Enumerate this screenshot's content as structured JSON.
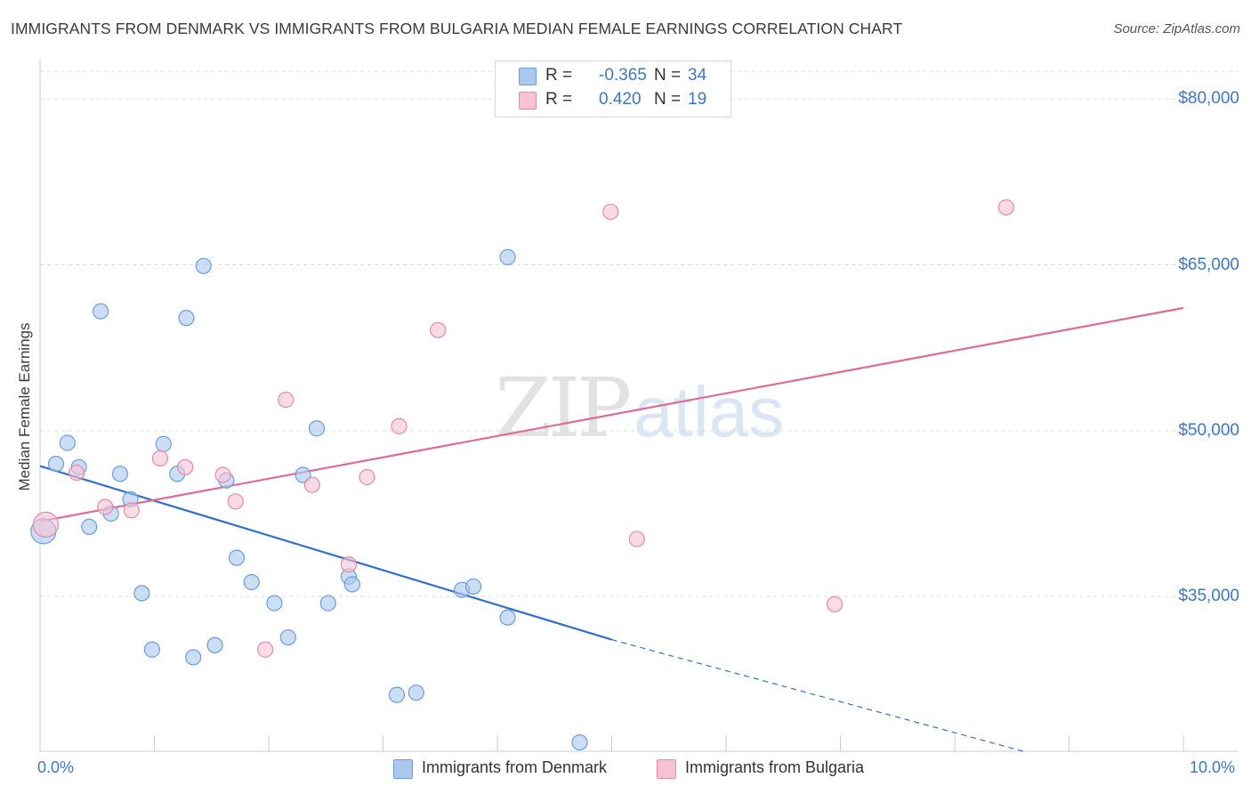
{
  "title": "IMMIGRANTS FROM DENMARK VS IMMIGRANTS FROM BULGARIA MEDIAN FEMALE EARNINGS CORRELATION CHART",
  "source": "Source: ZipAtlas.com",
  "watermark": {
    "zip": "ZIP",
    "atlas": "atlas"
  },
  "legend": {
    "rows": [
      {
        "r_label": "R =",
        "r_value": "-0.365",
        "n_label": "N =",
        "n_value": "34",
        "color": "#aac8ee",
        "border": "#6a9ede"
      },
      {
        "r_label": "R =",
        "r_value": "0.420",
        "n_label": "N =",
        "n_value": "19",
        "color": "#f7c3d3",
        "border": "#e58aa8"
      }
    ]
  },
  "chart_data": {
    "type": "scatter",
    "title": "IMMIGRANTS FROM DENMARK VS IMMIGRANTS FROM BULGARIA MEDIAN FEMALE EARNINGS CORRELATION CHART",
    "xlabel": "",
    "ylabel": "Median Female Earnings",
    "xlim": [
      0,
      10
    ],
    "ylim": [
      21000,
      83000
    ],
    "x_tick_labels": [
      "0.0%",
      "10.0%"
    ],
    "y_ticks": [
      35000,
      50000,
      65000,
      80000
    ],
    "y_tick_labels": [
      "$35,000",
      "$50,000",
      "$65,000",
      "$80,000"
    ],
    "grid": true,
    "legend_position": "top-center",
    "series": [
      {
        "name": "Immigrants from Denmark",
        "color": "#aac8ee",
        "stroke": "#6a9ede",
        "line_color": "#2e6fd0",
        "trend": {
          "x0": 0.0,
          "y0": 46800,
          "x1": 5.0,
          "y1": 31100,
          "dashed_to_x": 8.6,
          "dashed_to_y": 21000
        },
        "points": [
          {
            "x": 0.03,
            "y": 40900,
            "big": true
          },
          {
            "x": 0.14,
            "y": 47000
          },
          {
            "x": 0.24,
            "y": 48900
          },
          {
            "x": 0.34,
            "y": 46700
          },
          {
            "x": 0.43,
            "y": 41300
          },
          {
            "x": 0.53,
            "y": 60800
          },
          {
            "x": 0.62,
            "y": 42500
          },
          {
            "x": 0.7,
            "y": 46100
          },
          {
            "x": 0.79,
            "y": 43800
          },
          {
            "x": 0.89,
            "y": 35300
          },
          {
            "x": 0.98,
            "y": 30200
          },
          {
            "x": 1.08,
            "y": 48800
          },
          {
            "x": 1.2,
            "y": 46100
          },
          {
            "x": 1.28,
            "y": 60200
          },
          {
            "x": 1.34,
            "y": 29500
          },
          {
            "x": 1.43,
            "y": 64900
          },
          {
            "x": 1.53,
            "y": 30600
          },
          {
            "x": 1.63,
            "y": 45500
          },
          {
            "x": 1.72,
            "y": 38500
          },
          {
            "x": 1.85,
            "y": 36300
          },
          {
            "x": 2.05,
            "y": 34400
          },
          {
            "x": 2.17,
            "y": 31300
          },
          {
            "x": 2.3,
            "y": 46000
          },
          {
            "x": 2.42,
            "y": 50200
          },
          {
            "x": 2.52,
            "y": 34400
          },
          {
            "x": 2.7,
            "y": 36800
          },
          {
            "x": 2.73,
            "y": 36100
          },
          {
            "x": 3.12,
            "y": 26100
          },
          {
            "x": 3.29,
            "y": 26300
          },
          {
            "x": 3.69,
            "y": 35600
          },
          {
            "x": 3.79,
            "y": 35900
          },
          {
            "x": 4.09,
            "y": 33100
          },
          {
            "x": 4.09,
            "y": 65700
          },
          {
            "x": 4.72,
            "y": 21800
          }
        ]
      },
      {
        "name": "Immigrants from Bulgaria",
        "color": "#f7c3d3",
        "stroke": "#e58aa8",
        "line_color": "#e06a93",
        "trend": {
          "x0": 0.0,
          "y0": 41800,
          "x1": 10.0,
          "y1": 61100
        },
        "points": [
          {
            "x": 0.05,
            "y": 41500,
            "big": true
          },
          {
            "x": 0.32,
            "y": 46200
          },
          {
            "x": 0.57,
            "y": 43100
          },
          {
            "x": 0.8,
            "y": 42800
          },
          {
            "x": 1.05,
            "y": 47500
          },
          {
            "x": 1.27,
            "y": 46700
          },
          {
            "x": 1.6,
            "y": 46000
          },
          {
            "x": 1.71,
            "y": 43600
          },
          {
            "x": 1.97,
            "y": 30200
          },
          {
            "x": 2.15,
            "y": 52800
          },
          {
            "x": 2.38,
            "y": 45100
          },
          {
            "x": 2.7,
            "y": 37900
          },
          {
            "x": 2.86,
            "y": 45800
          },
          {
            "x": 3.14,
            "y": 50400
          },
          {
            "x": 3.48,
            "y": 59100
          },
          {
            "x": 4.99,
            "y": 69800
          },
          {
            "x": 5.22,
            "y": 40200
          },
          {
            "x": 6.95,
            "y": 34300
          },
          {
            "x": 8.45,
            "y": 70200
          }
        ]
      }
    ]
  }
}
